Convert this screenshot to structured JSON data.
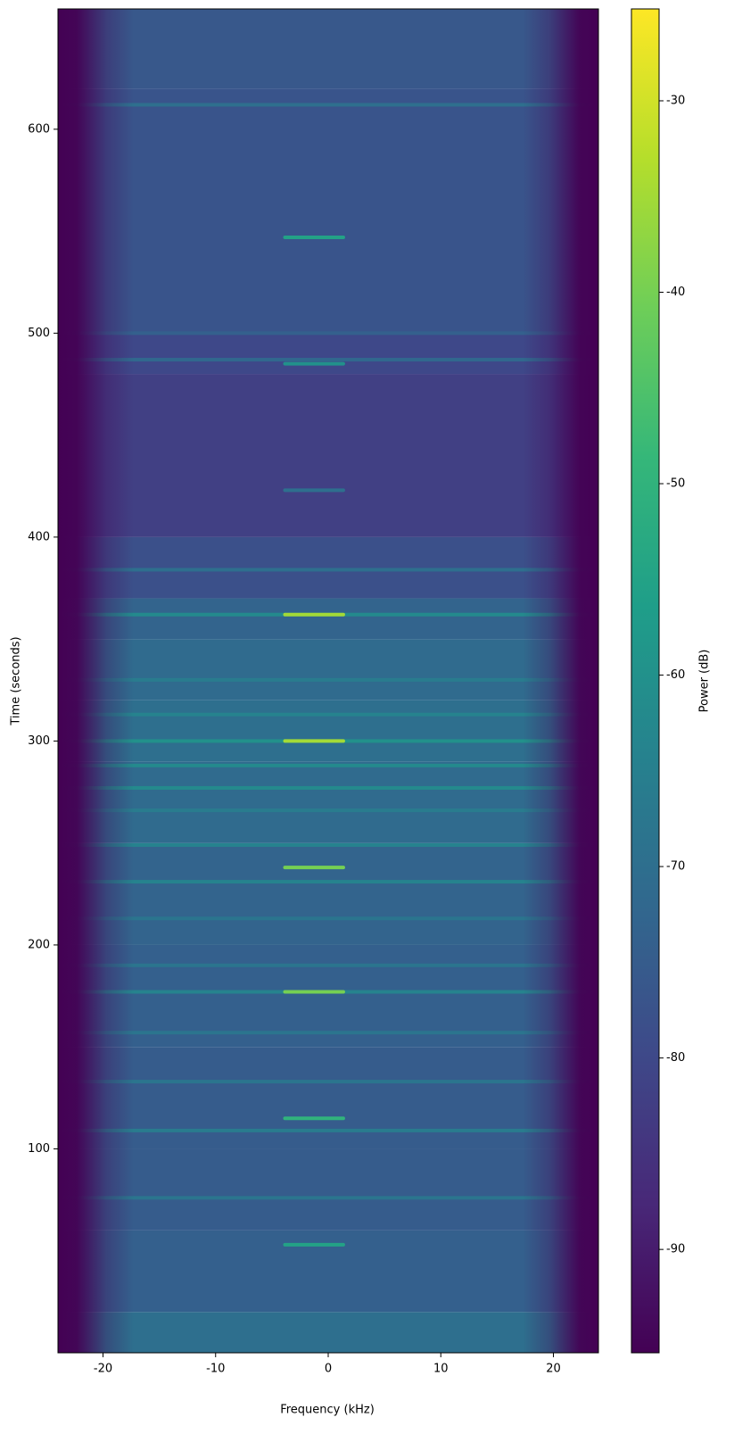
{
  "chart_data": {
    "type": "spectrogram",
    "xlabel": "Frequency (kHz)",
    "ylabel": "Time (seconds)",
    "colorbar_label": "Power (dB)",
    "colormap": "viridis",
    "xlim": [
      -24,
      24
    ],
    "ylim": [
      0,
      659
    ],
    "xticks": [
      -20,
      -10,
      0,
      10,
      20
    ],
    "yticks": [
      100,
      200,
      300,
      400,
      500,
      600
    ],
    "clim": [
      -95.4,
      -25.2
    ],
    "cticks": [
      -90,
      -80,
      -70,
      -60,
      -50,
      -40,
      -30
    ],
    "row_edges": [
      0,
      20,
      60,
      100,
      150,
      200,
      250,
      290,
      320,
      350,
      370,
      400,
      480,
      500,
      620,
      659
    ],
    "row_power": [
      -70,
      -74,
      -75,
      -75,
      -74,
      -73,
      -71,
      -70,
      -71,
      -73,
      -78,
      -82,
      -80,
      -77,
      -76
    ],
    "lines": {
      "time": [
        76,
        109,
        133,
        157,
        177,
        190,
        213,
        231,
        249,
        266,
        277,
        288,
        300,
        313,
        330,
        362,
        384,
        487,
        500,
        612
      ],
      "power": [
        -68,
        -66,
        -68,
        -68,
        -64,
        -68,
        -68,
        -64,
        -64,
        -66,
        -62,
        -62,
        -60,
        -64,
        -66,
        -62,
        -70,
        -72,
        -74,
        -70
      ]
    },
    "burst_freq": [
      -4,
      1.5
    ],
    "bursts": {
      "time": [
        53,
        115,
        177,
        238,
        300,
        362,
        423,
        485,
        547
      ],
      "power": [
        -55,
        -50,
        -40,
        -40,
        -35,
        -35,
        -70,
        -60,
        -55
      ]
    }
  }
}
